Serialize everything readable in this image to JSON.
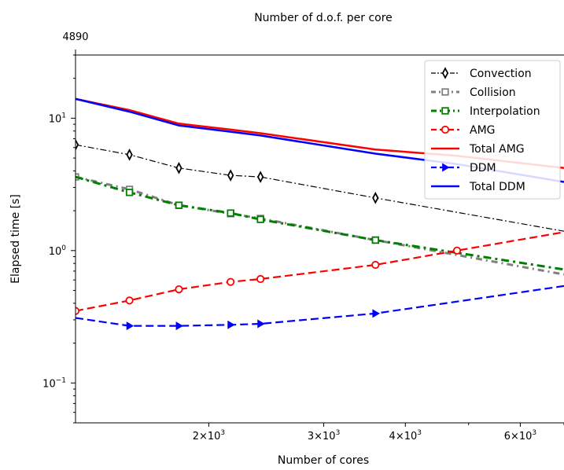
{
  "chart_data": {
    "type": "line",
    "xscale": "log",
    "yscale": "log",
    "xlim": [
      1250,
      7000
    ],
    "ylim": [
      0.05,
      30
    ],
    "xlabel": "Number of cores",
    "ylabel": "Elapsed time [s]",
    "top_xlabel": "Number of d.o.f. per core",
    "top_xtick": {
      "x": 1250,
      "label": "4890"
    },
    "x_ticks": [
      {
        "x": 2000,
        "base": "2",
        "exp": "3"
      },
      {
        "x": 3000,
        "base": "3",
        "exp": "3"
      },
      {
        "x": 4000,
        "base": "4",
        "exp": "3"
      },
      {
        "x": 6000,
        "base": "6",
        "exp": "3"
      }
    ],
    "y_ticks": [
      {
        "y": 10,
        "base": "10",
        "exp": "1"
      },
      {
        "y": 1,
        "base": "10",
        "exp": "0"
      },
      {
        "y": 0.1,
        "base": "10",
        "exp": "−1"
      }
    ],
    "legend_position": "top-right",
    "series": [
      {
        "name": "Convection",
        "color": "#000000",
        "dash": "8,3,2,3",
        "width": 1.2,
        "marker": "diamond",
        "marker_fill": "#ffffff",
        "x": [
          1250,
          1512,
          1800,
          2160,
          2400,
          3600,
          7000
        ],
        "y": [
          6.3,
          5.3,
          4.2,
          3.7,
          3.6,
          2.5,
          1.4
        ],
        "marker_x": [
          1250,
          1512,
          1800,
          2160,
          2400,
          3600
        ]
      },
      {
        "name": "Collision",
        "color": "#808080",
        "dash": "8,5,2,5",
        "width": 3,
        "marker": "square",
        "marker_fill": "#ffffff",
        "x": [
          1250,
          1512,
          1800,
          2160,
          2400,
          3600,
          7000
        ],
        "y": [
          3.6,
          2.9,
          2.2,
          1.9,
          1.75,
          1.2,
          0.66
        ],
        "marker_x": [
          1250,
          1512,
          1800,
          2160,
          2400,
          3600
        ]
      },
      {
        "name": "Interpolation",
        "color": "#008000",
        "dash": "10,5,3,5",
        "width": 3,
        "marker": "square",
        "marker_fill": "#ffffff",
        "x": [
          1250,
          1512,
          1800,
          2160,
          2400,
          3600,
          7000
        ],
        "y": [
          3.6,
          2.75,
          2.2,
          1.92,
          1.72,
          1.2,
          0.72
        ],
        "marker_x": [
          1512,
          1800,
          2160,
          2400,
          3600
        ]
      },
      {
        "name": "AMG",
        "color": "#ff0000",
        "dash": "10,5",
        "width": 2.2,
        "marker": "circle",
        "marker_fill": "#ffffff",
        "x": [
          1250,
          1512,
          1800,
          2160,
          2400,
          3600,
          4800,
          7000
        ],
        "y": [
          0.35,
          0.42,
          0.51,
          0.58,
          0.61,
          0.78,
          1.0,
          1.38
        ],
        "marker_x": [
          1250,
          1512,
          1800,
          2160,
          2400,
          3600,
          4800
        ]
      },
      {
        "name": "Total AMG",
        "color": "#ff0000",
        "dash": "",
        "width": 2.5,
        "marker": "none",
        "marker_fill": "#ff0000",
        "x": [
          1250,
          1512,
          1800,
          2160,
          2400,
          3600,
          4800,
          7000
        ],
        "y": [
          14,
          11.5,
          9.1,
          8.2,
          7.7,
          5.8,
          5.2,
          4.2
        ],
        "marker_x": []
      },
      {
        "name": "DDM",
        "color": "#0000ff",
        "dash": "10,5",
        "width": 2.2,
        "marker": "triangle-right",
        "marker_fill": "#0000ff",
        "x": [
          1250,
          1512,
          1800,
          2160,
          2400,
          3600,
          7000
        ],
        "y": [
          0.31,
          0.27,
          0.27,
          0.275,
          0.28,
          0.335,
          0.54
        ],
        "marker_x": [
          1512,
          1800,
          2160,
          2400,
          3600
        ]
      },
      {
        "name": "Total DDM",
        "color": "#0000ff",
        "dash": "",
        "width": 2.5,
        "marker": "none",
        "marker_fill": "#0000ff",
        "x": [
          1250,
          1512,
          1800,
          2160,
          2400,
          3600,
          4800,
          7000
        ],
        "y": [
          14,
          11.2,
          8.8,
          7.9,
          7.4,
          5.4,
          4.5,
          3.3
        ],
        "marker_x": []
      }
    ]
  }
}
